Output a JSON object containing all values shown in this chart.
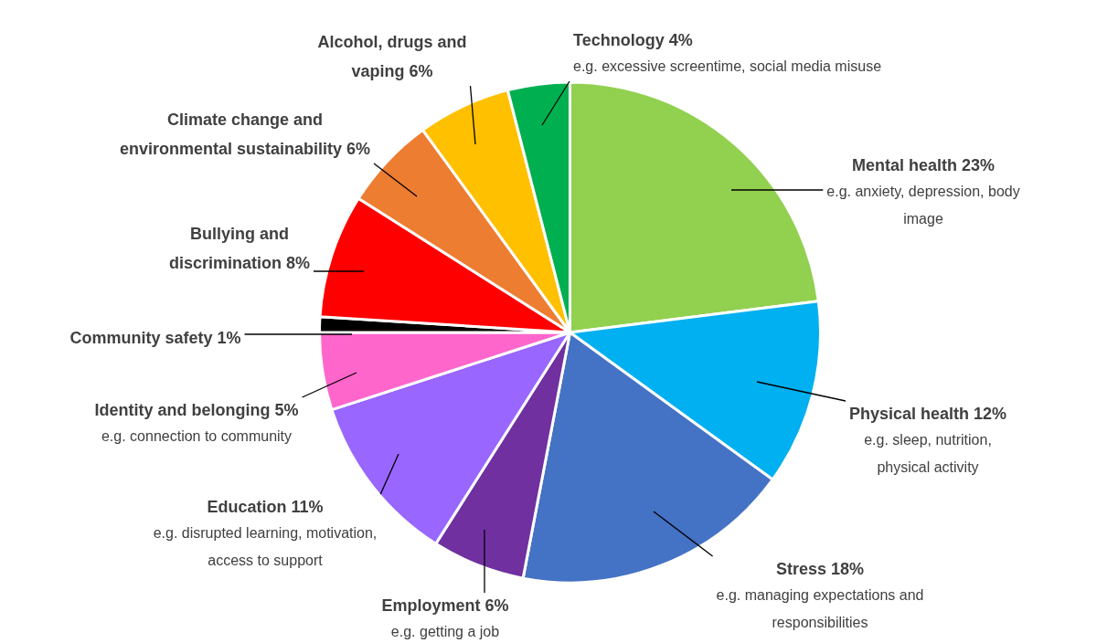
{
  "chart_data": {
    "type": "pie",
    "legend": false,
    "categories": [
      "Mental health",
      "Physical health",
      "Stress",
      "Employment",
      "Education",
      "Identity and belonging",
      "Community safety",
      "Bullying and discrimination",
      "Climate change and environmental sustainability",
      "Alcohol, drugs and vaping",
      "Technology"
    ],
    "values": [
      23,
      12,
      18,
      6,
      11,
      5,
      1,
      8,
      6,
      6,
      4
    ],
    "value_labels": [
      "23%",
      "12%",
      "18%",
      "6%",
      "11%",
      "5%",
      "1%",
      "8%",
      "6%",
      "6%",
      "4%"
    ],
    "colors": [
      "#92d050",
      "#00b0f0",
      "#4472c4",
      "#7030a0",
      "#9966ff",
      "#ff66cc",
      "#000000",
      "#ff0000",
      "#ed7d31",
      "#ffc000",
      "#00b050"
    ],
    "annotations": [
      {
        "text": "e.g. anxiety, depression, body image",
        "x": "Mental health"
      },
      {
        "text": "e.g. sleep, nutrition, physical activity",
        "x": "Physical health"
      },
      {
        "text": "e.g. managing expectations and responsibilities",
        "x": "Stress"
      },
      {
        "text": "e.g. getting a job",
        "x": "Employment"
      },
      {
        "text": "e.g. disrupted learning, motivation, access to support",
        "x": "Education"
      },
      {
        "text": "e.g. connection to community",
        "x": "Identity and belonging"
      },
      {
        "text": "e.g. excessive screentime, social media misuse",
        "x": "Technology"
      }
    ]
  }
}
